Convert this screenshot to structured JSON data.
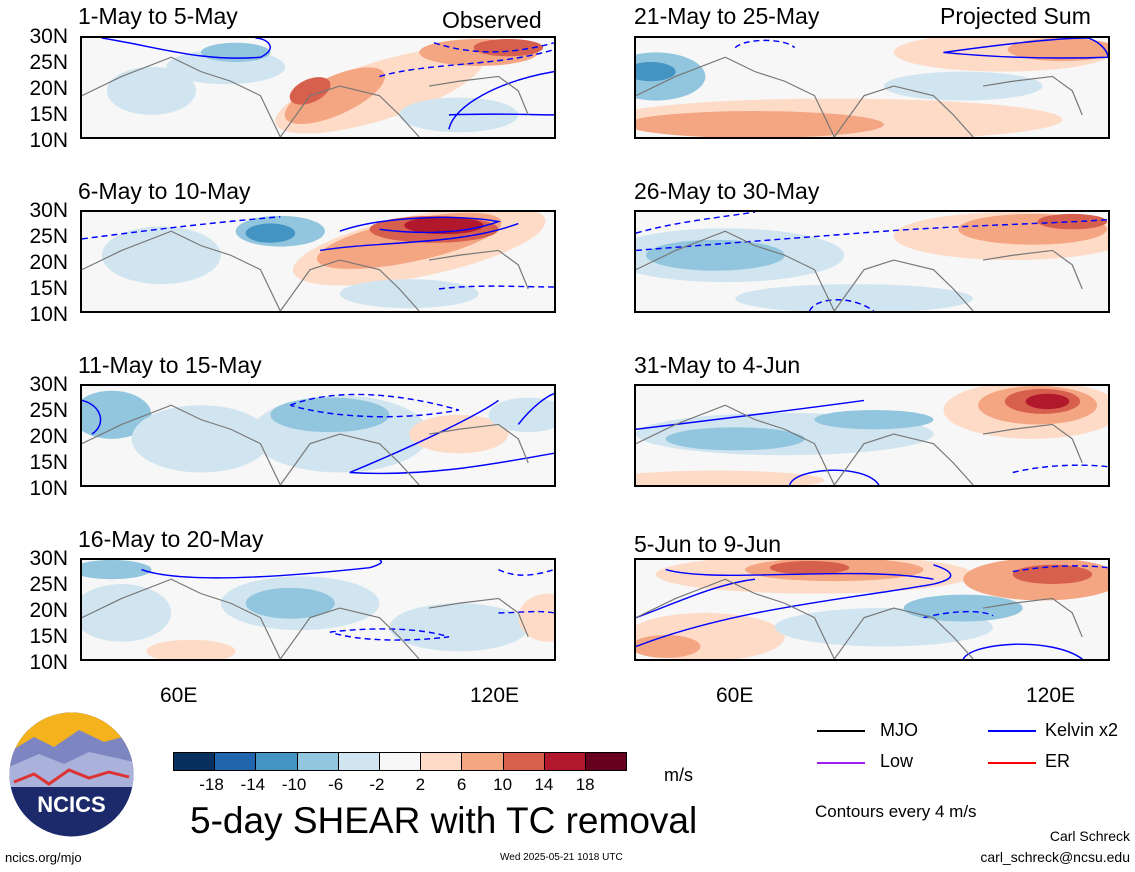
{
  "header_labels": {
    "observed": "Observed",
    "projected": "Projected Sum"
  },
  "panels": [
    {
      "title": "1-May to 5-May"
    },
    {
      "title": "6-May to 10-May"
    },
    {
      "title": "11-May to 15-May"
    },
    {
      "title": "16-May to 20-May"
    },
    {
      "title": "21-May to 25-May"
    },
    {
      "title": "26-May to 30-May"
    },
    {
      "title": "31-May to 4-Jun"
    },
    {
      "title": "5-Jun to 9-Jun"
    }
  ],
  "lat_labels": [
    "30N",
    "25N",
    "20N",
    "15N",
    "10N"
  ],
  "lon_labels": [
    "60E",
    "120E"
  ],
  "colorbar": {
    "colors": [
      "#08305e",
      "#2166ac",
      "#4393c3",
      "#92c5de",
      "#d1e5f0",
      "#f7f7f7",
      "#fddbc7",
      "#f4a582",
      "#d6604d",
      "#b2182b",
      "#67001f"
    ],
    "ticks": [
      "-18",
      "-14",
      "-10",
      "-6",
      "-2",
      "2",
      "6",
      "10",
      "14",
      "18"
    ],
    "units": "m/s"
  },
  "legend": {
    "mjo": "MJO",
    "kelvin": "Kelvin x2",
    "low": "Low",
    "er": "ER",
    "mjo_color": "#000000",
    "kelvin_color": "#0000ff",
    "low_color": "#a020f0",
    "er_color": "#ff0000",
    "note": "Contours every 4 m/s"
  },
  "title": "5-day SHEAR with TC removal",
  "logo_text": "NCICS",
  "footer": {
    "url": "ncics.org/mjo",
    "timestamp": "Wed 2025-05-21 1018 UTC",
    "author": "Carl Schreck",
    "email": "carl_schreck@ncsu.edu"
  }
}
